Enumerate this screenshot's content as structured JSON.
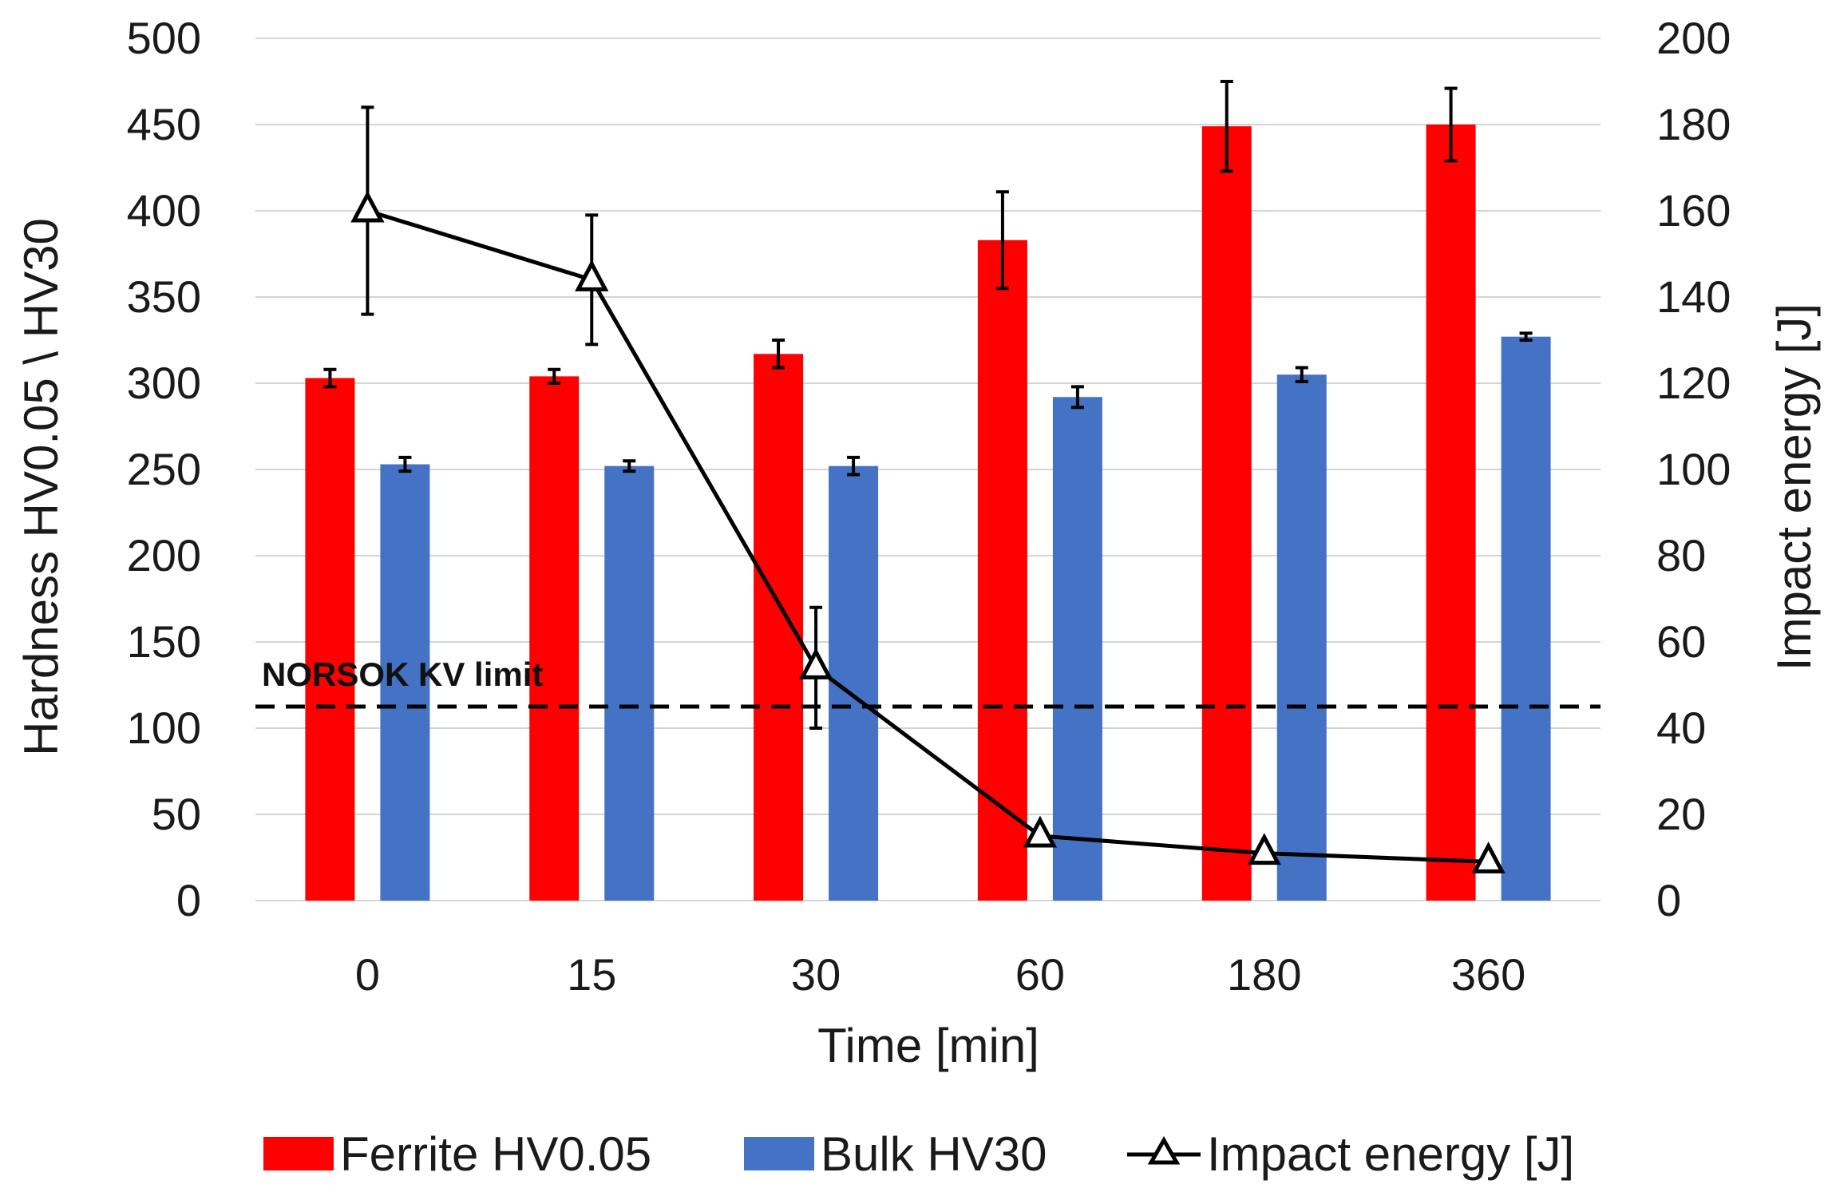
{
  "chart_data": {
    "type": "bar",
    "title": "",
    "xlabel": "Time [min]",
    "ylabel": "Hardness HV0.05 \\ HV30",
    "y2label": "Impact energy [J]",
    "categories": [
      "0",
      "15",
      "30",
      "60",
      "180",
      "360"
    ],
    "ylim": [
      0,
      500
    ],
    "y2lim": [
      0,
      200
    ],
    "yticks": [
      "0",
      "50",
      "100",
      "150",
      "200",
      "250",
      "300",
      "350",
      "400",
      "450",
      "500"
    ],
    "y2ticks": [
      "0",
      "20",
      "40",
      "60",
      "80",
      "100",
      "120",
      "140",
      "160",
      "180",
      "200"
    ],
    "grid": true,
    "legend_position": "bottom",
    "series": [
      {
        "name": "Ferrite HV0.05",
        "kind": "bar",
        "axis": "left",
        "color": "#ff0000",
        "values": [
          303,
          304,
          317,
          383,
          449,
          450
        ],
        "errors": [
          5,
          4,
          8,
          28,
          26,
          21
        ]
      },
      {
        "name": "Bulk HV30",
        "kind": "bar",
        "axis": "left",
        "color": "#4472c4",
        "values": [
          253,
          252,
          252,
          292,
          305,
          327
        ],
        "errors": [
          4,
          3,
          5,
          6,
          4,
          2
        ]
      },
      {
        "name": "Impact energy [J]",
        "kind": "line",
        "axis": "right",
        "marker": "triangle-open",
        "color": "#000000",
        "values": [
          160,
          144,
          54,
          15,
          11,
          9
        ],
        "errors": [
          24,
          15,
          14,
          null,
          null,
          null
        ]
      }
    ],
    "reference_line": {
      "label": "NORSOK KV limit",
      "axis": "right",
      "value": 45,
      "style": "dashed"
    }
  }
}
